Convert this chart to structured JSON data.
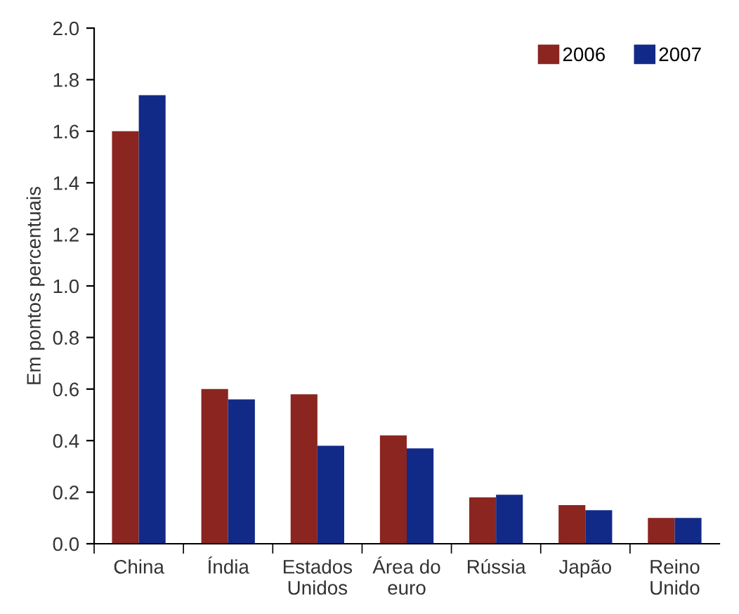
{
  "chart_data": {
    "type": "bar",
    "ylabel": "Em pontos percentuais",
    "categories": [
      "China",
      "Índia",
      "Estados\nUnidos",
      "Área do\neuro",
      "Rússia",
      "Japão",
      "Reino\nUnido"
    ],
    "series": [
      {
        "name": "2006",
        "color": "#8b2520",
        "values": [
          1.6,
          0.6,
          0.58,
          0.42,
          0.18,
          0.15,
          0.1
        ]
      },
      {
        "name": "2007",
        "color": "#122a87",
        "values": [
          1.74,
          0.56,
          0.38,
          0.37,
          0.19,
          0.13,
          0.1
        ]
      }
    ],
    "ylim": [
      0,
      2.0
    ],
    "yticks": [
      {
        "value": 0,
        "label": "0.0"
      },
      {
        "value": 0.2,
        "label": "0.2"
      },
      {
        "value": 0.4,
        "label": "0.4"
      },
      {
        "value": 0.6,
        "label": "0.6"
      },
      {
        "value": 0.8,
        "label": "0.8"
      },
      {
        "value": 1.0,
        "label": "1.0"
      },
      {
        "value": 1.2,
        "label": "1.2"
      },
      {
        "value": 1.4,
        "label": "1.4"
      },
      {
        "value": 1.6,
        "label": "1.6"
      },
      {
        "value": 1.8,
        "label": "1.8"
      },
      {
        "value": 2.0,
        "label": "2.0"
      }
    ],
    "grid": false,
    "legend": "top right"
  }
}
